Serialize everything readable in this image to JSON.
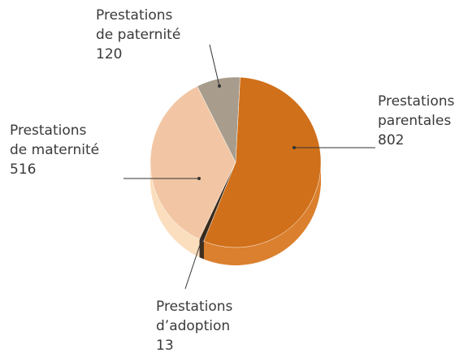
{
  "chart_data": {
    "type": "pie",
    "categories": [
      [
        "Prestations",
        "parentales"
      ],
      [
        "Prestations",
        "d’adoption"
      ],
      [
        "Prestations",
        "de maternité"
      ],
      [
        "Prestations",
        "de paternité"
      ]
    ],
    "values": [
      802,
      13,
      516,
      120
    ],
    "colors": [
      "#d0701a",
      "#3a2a1a",
      "#f2c6a4",
      "#a89c8c"
    ]
  }
}
